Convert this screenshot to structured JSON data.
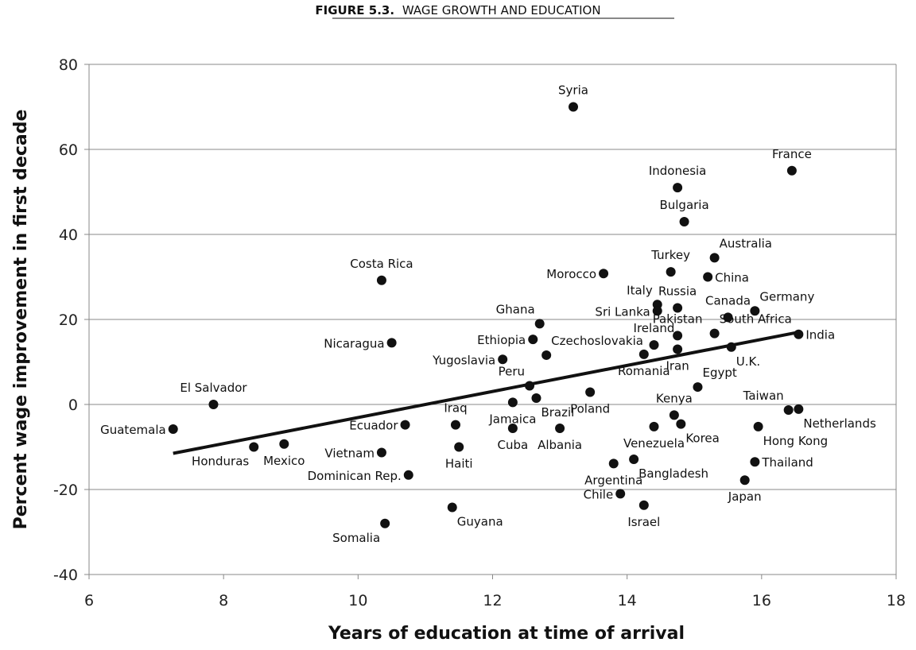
{
  "figure_title": {
    "prefix": "FIGURE 5.3.",
    "text": "WAGE GROWTH AND EDUCATION"
  },
  "chart_data": {
    "type": "scatter",
    "title": "FIGURE 5.3. WAGE GROWTH AND EDUCATION",
    "xlabel": "Years of education at time of arrival",
    "ylabel": "Percent wage improvement in first decade",
    "xlim": [
      6,
      18
    ],
    "ylim": [
      -40,
      80
    ],
    "xticks": [
      6,
      8,
      10,
      12,
      14,
      16,
      18
    ],
    "yticks": [
      -40,
      -20,
      0,
      20,
      40,
      60,
      80
    ],
    "grid": "horizontal",
    "trendline": {
      "from": [
        7.25,
        -11.5
      ],
      "to": [
        16.55,
        17
      ]
    },
    "points": [
      {
        "label": "Syria",
        "x": 13.2,
        "y": 70,
        "pos": "n"
      },
      {
        "label": "France",
        "x": 16.45,
        "y": 55,
        "pos": "n"
      },
      {
        "label": "Indonesia",
        "x": 14.75,
        "y": 51,
        "pos": "n"
      },
      {
        "label": "Bulgaria",
        "x": 14.85,
        "y": 43,
        "pos": "n"
      },
      {
        "label": "Australia",
        "x": 15.3,
        "y": 34.5,
        "pos": "ne"
      },
      {
        "label": "Costa Rica",
        "x": 10.35,
        "y": 29.2,
        "pos": "n"
      },
      {
        "label": "Morocco",
        "x": 13.65,
        "y": 30.8,
        "pos": "w"
      },
      {
        "label": "Turkey",
        "x": 14.65,
        "y": 31.2,
        "pos": "n"
      },
      {
        "label": "China",
        "x": 15.2,
        "y": 30,
        "pos": "e"
      },
      {
        "label": "Italy",
        "x": 14.45,
        "y": 23.5,
        "pos": "nw"
      },
      {
        "label": "Russia",
        "x": 14.75,
        "y": 22.7,
        "pos": "n"
      },
      {
        "label": "Sri Lanka",
        "x": 14.45,
        "y": 22,
        "pos": "w"
      },
      {
        "label": "Canada",
        "x": 15.5,
        "y": 20.5,
        "pos": "n"
      },
      {
        "label": "Germany",
        "x": 15.9,
        "y": 22,
        "pos": "ne"
      },
      {
        "label": "Pakistan",
        "x": 14.75,
        "y": 16.2,
        "pos": "n"
      },
      {
        "label": "South Africa",
        "x": 15.3,
        "y": 16.7,
        "pos": "ne"
      },
      {
        "label": "Ghana",
        "x": 12.7,
        "y": 19,
        "pos": "nw"
      },
      {
        "label": "Ireland",
        "x": 14.4,
        "y": 14,
        "pos": "n"
      },
      {
        "label": "Ethiopia",
        "x": 12.6,
        "y": 15.3,
        "pos": "w"
      },
      {
        "label": "Nicaragua",
        "x": 10.5,
        "y": 14.5,
        "pos": "w"
      },
      {
        "label": "Czechoslovakia",
        "x": 12.8,
        "y": 11.6,
        "pos": "ne"
      },
      {
        "label": "Yugoslavia",
        "x": 12.15,
        "y": 10.6,
        "pos": "w"
      },
      {
        "label": "Romania",
        "x": 14.25,
        "y": 11.8,
        "pos": "s"
      },
      {
        "label": "Iran",
        "x": 14.75,
        "y": 13,
        "pos": "s"
      },
      {
        "label": "India",
        "x": 16.55,
        "y": 16.5,
        "pos": "e"
      },
      {
        "label": "U.K.",
        "x": 15.55,
        "y": 13.5,
        "pos": "se"
      },
      {
        "label": "Peru",
        "x": 12.55,
        "y": 4.4,
        "pos": "nw"
      },
      {
        "label": "Egypt",
        "x": 15.05,
        "y": 4.1,
        "pos": "ne"
      },
      {
        "label": "El Salvador",
        "x": 7.85,
        "y": 0,
        "pos": "n"
      },
      {
        "label": "Poland",
        "x": 13.45,
        "y": 2.9,
        "pos": "s"
      },
      {
        "label": "Kenya",
        "x": 14.7,
        "y": -2.5,
        "pos": "n"
      },
      {
        "label": "Taiwan",
        "x": 16.4,
        "y": -1.3,
        "pos": "nw"
      },
      {
        "label": "Netherlands",
        "x": 16.55,
        "y": -1.1,
        "pos": "se"
      },
      {
        "label": "Iraq",
        "x": 11.45,
        "y": -4.8,
        "pos": "n"
      },
      {
        "label": "Jamaica",
        "x": 12.3,
        "y": 0.5,
        "pos": "s"
      },
      {
        "label": "Brazil",
        "x": 12.65,
        "y": 1.5,
        "pos": "se"
      },
      {
        "label": "Ecuador",
        "x": 10.7,
        "y": -4.8,
        "pos": "w"
      },
      {
        "label": "Guatemala",
        "x": 7.25,
        "y": -5.8,
        "pos": "w"
      },
      {
        "label": "Cuba",
        "x": 12.3,
        "y": -5.6,
        "pos": "s"
      },
      {
        "label": "Albania",
        "x": 13.0,
        "y": -5.6,
        "pos": "s"
      },
      {
        "label": "Venezuela",
        "x": 14.4,
        "y": -5.2,
        "pos": "s"
      },
      {
        "label": "Korea",
        "x": 14.8,
        "y": -4.6,
        "pos": "se"
      },
      {
        "label": "Hong Kong",
        "x": 15.95,
        "y": -5.2,
        "pos": "se"
      },
      {
        "label": "Honduras",
        "x": 8.45,
        "y": -10,
        "pos": "sw"
      },
      {
        "label": "Mexico",
        "x": 8.9,
        "y": -9.3,
        "pos": "s"
      },
      {
        "label": "Vietnam",
        "x": 10.35,
        "y": -11.3,
        "pos": "w"
      },
      {
        "label": "Haiti",
        "x": 11.5,
        "y": -10,
        "pos": "s"
      },
      {
        "label": "Argentina",
        "x": 13.8,
        "y": -13.9,
        "pos": "s"
      },
      {
        "label": "Bangladesh",
        "x": 14.1,
        "y": -12.9,
        "pos": "se"
      },
      {
        "label": "Thailand",
        "x": 15.9,
        "y": -13.5,
        "pos": "e"
      },
      {
        "label": "Dominican Rep.",
        "x": 10.75,
        "y": -16.6,
        "pos": "w"
      },
      {
        "label": "Japan",
        "x": 15.75,
        "y": -17.8,
        "pos": "s"
      },
      {
        "label": "Chile",
        "x": 13.9,
        "y": -21,
        "pos": "w"
      },
      {
        "label": "Israel",
        "x": 14.25,
        "y": -23.7,
        "pos": "s"
      },
      {
        "label": "Guyana",
        "x": 11.4,
        "y": -24.2,
        "pos": "se"
      },
      {
        "label": "Somalia",
        "x": 10.4,
        "y": -28,
        "pos": "sw"
      }
    ]
  }
}
